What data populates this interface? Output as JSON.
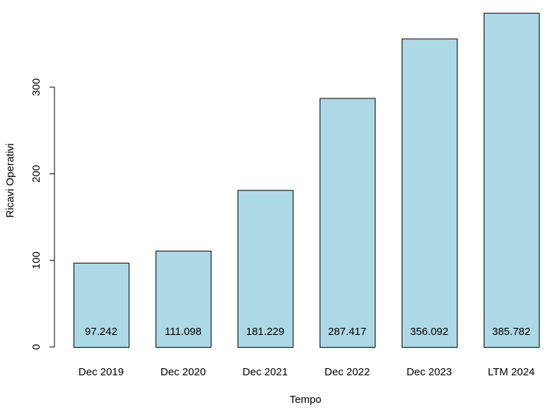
{
  "chart_data": {
    "type": "bar",
    "title": "",
    "xlabel": "Tempo",
    "ylabel": "Ricavi Operativi",
    "categories": [
      "Dec 2019",
      "Dec 2020",
      "Dec 2021",
      "Dec 2022",
      "Dec 2023",
      "LTM 2024"
    ],
    "values": [
      97.242,
      111.098,
      181.229,
      287.417,
      356.092,
      385.782
    ],
    "value_labels": [
      "97.242",
      "111.098",
      "181.229",
      "287.417",
      "356.092",
      "385.782"
    ],
    "y_ticks": [
      0,
      100,
      200,
      300
    ],
    "ylim": [
      0,
      385.782
    ],
    "grid": false,
    "bar_color": "#add8e6",
    "bar_edge_color": "#000000"
  }
}
